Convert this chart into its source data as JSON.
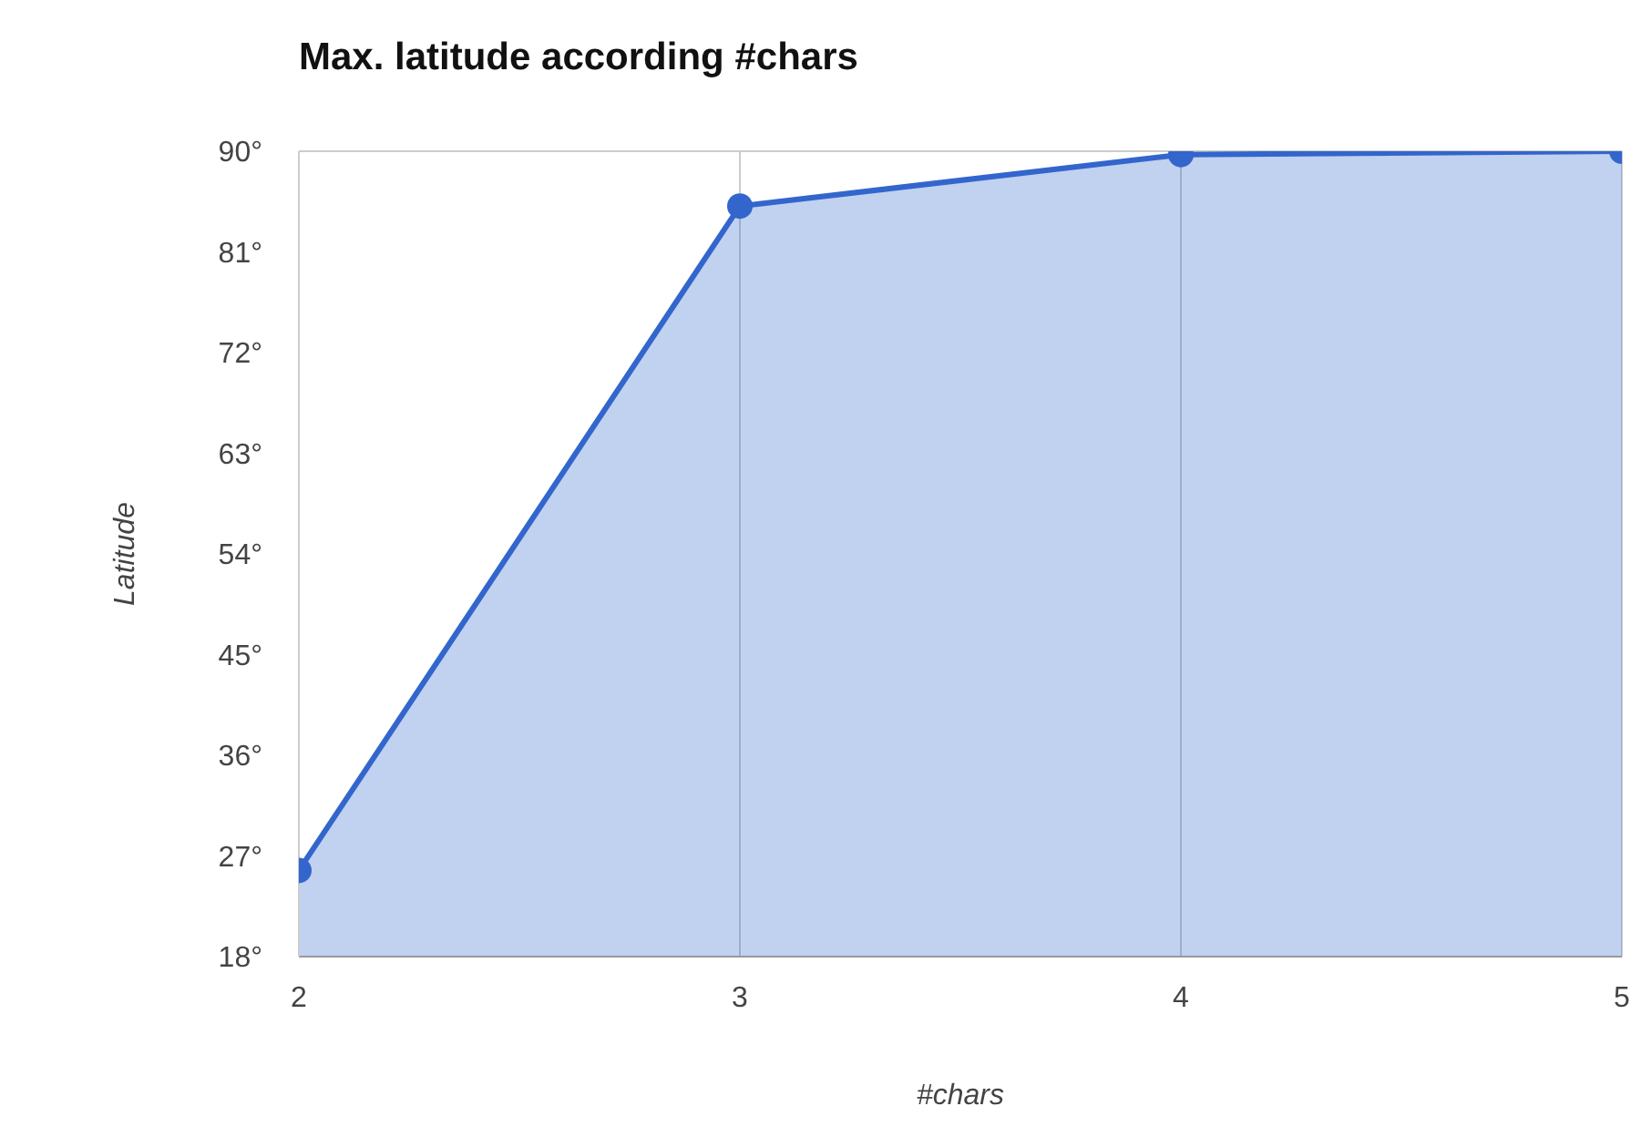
{
  "chart_data": {
    "type": "area",
    "title": "Max. latitude according #chars",
    "xlabel": "#chars",
    "ylabel": "Latitude",
    "x": [
      2,
      3,
      4,
      5
    ],
    "series": [
      {
        "color": "#3366cc",
        "values": [
          25.7,
          85.1,
          89.7,
          90
        ]
      }
    ],
    "xlim": [
      2,
      5
    ],
    "xticks": [
      2,
      3,
      4,
      5
    ],
    "ylim": [
      18,
      90
    ],
    "yticks": [
      {
        "value": 18,
        "label": "18°"
      },
      {
        "value": 27,
        "label": "27°"
      },
      {
        "value": 36,
        "label": "36°"
      },
      {
        "value": 45,
        "label": "45°"
      },
      {
        "value": 54,
        "label": "54°"
      },
      {
        "value": 63,
        "label": "63°"
      },
      {
        "value": 72,
        "label": "72°"
      },
      {
        "value": 81,
        "label": "81°"
      },
      {
        "value": 90,
        "label": "90°"
      }
    ],
    "grid": true,
    "marker": "circle",
    "legend": false
  }
}
